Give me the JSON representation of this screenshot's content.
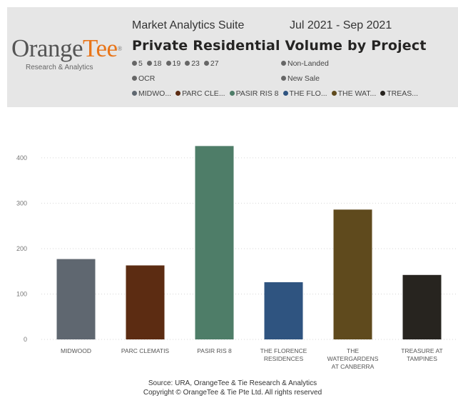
{
  "header": {
    "logo_orange": "Orange",
    "logo_tee": "Tee",
    "logo_registered": "®",
    "logo_sub": "Research & Analytics",
    "suite": "Market Analytics Suite",
    "period": "Jul 2021 - Sep 2021",
    "title": "Private Residential Volume by Project"
  },
  "filters": {
    "row1_left": [
      {
        "label": "5",
        "color": "#666666"
      },
      {
        "label": "18",
        "color": "#666666"
      },
      {
        "label": "19",
        "color": "#666666"
      },
      {
        "label": "23",
        "color": "#666666"
      },
      {
        "label": "27",
        "color": "#666666"
      }
    ],
    "row1_right": [
      {
        "label": "Non-Landed",
        "color": "#666666"
      }
    ],
    "row2_left": [
      {
        "label": "OCR",
        "color": "#666666"
      }
    ],
    "row2_right": [
      {
        "label": "New Sale",
        "color": "#666666"
      }
    ],
    "legend": [
      {
        "label": "MIDWO...",
        "color": "#5f6770"
      },
      {
        "label": "PARC CLE...",
        "color": "#5c2c12"
      },
      {
        "label": "PASIR RIS 8",
        "color": "#4e7d68"
      },
      {
        "label": "THE FLO...",
        "color": "#2f5480"
      },
      {
        "label": "THE WAT...",
        "color": "#5f4a1d"
      },
      {
        "label": "TREAS...",
        "color": "#27241f"
      }
    ]
  },
  "chart_data": {
    "type": "bar",
    "categories": [
      "MIDWOOD",
      "PARC CLEMATIS",
      "PASIR RIS 8",
      "THE FLORENCE RESIDENCES",
      "THE WATERGARDENS AT CANBERRA",
      "TREASURE AT TAMPINES"
    ],
    "category_lines": [
      [
        "MIDWOOD"
      ],
      [
        "PARC CLEMATIS"
      ],
      [
        "PASIR RIS 8"
      ],
      [
        "THE FLORENCE",
        "RESIDENCES"
      ],
      [
        "THE",
        "WATERGARDENS",
        "AT CANBERRA"
      ],
      [
        "TREASURE AT",
        "TAMPINES"
      ]
    ],
    "values": [
      177,
      163,
      426,
      126,
      286,
      142
    ],
    "colors": [
      "#5f6770",
      "#5c2c12",
      "#4e7d68",
      "#2f5480",
      "#5f4a1d",
      "#27241f"
    ],
    "ylim": [
      0,
      425
    ],
    "yticks": [
      0,
      100,
      200,
      300,
      400
    ],
    "grid": true,
    "gridlines": "dotted",
    "title": "Private Residential Volume by Project",
    "xlabel": "",
    "ylabel": ""
  },
  "footer": {
    "source": "Source: URA, OrangeTee & Tie Research & Analytics",
    "copyright": "Copyright © OrangeTee & Tie Pte Ltd. All rights reserved"
  }
}
